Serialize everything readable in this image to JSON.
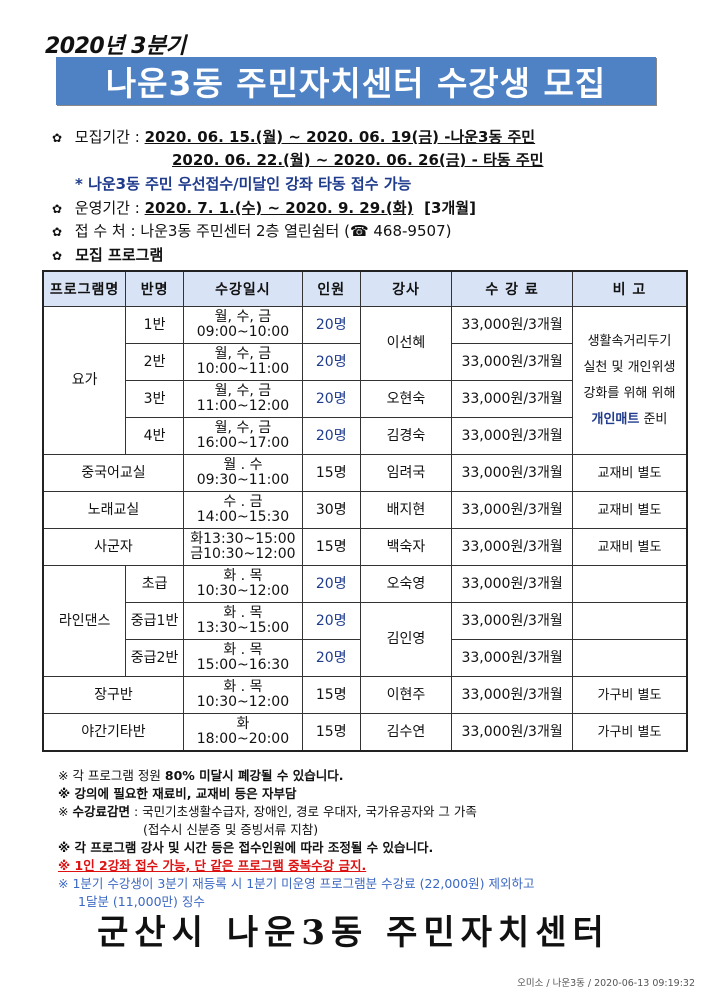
{
  "header": {
    "quarter": "2020년 3분기",
    "title": "나운3동 주민자치센터 수강생 모집"
  },
  "info": {
    "recruit_label": "모집기간 :",
    "recruit_period_1": "2020. 06. 15.(월) ~ 2020. 06. 19(금) -나운3동 주민",
    "recruit_period_2": "2020. 06. 22.(월) ~ 2020. 06. 26(금) - 타동 주민",
    "priority_note": "* 나운3동 주민 우선접수/미달인 강좌 타동 접수 가능",
    "operation_label": "운영기간 :",
    "operation_period": "2020. 7. 1.(수) ~ 2020. 9. 29.(화)",
    "operation_months": "[3개월]",
    "location_label": "접 수 처 :",
    "location": "나운3동 주민센터 2층 열린쉼터 (☎ 468-9507)",
    "program_label": "모집 프로그램"
  },
  "table": {
    "headers": [
      "프로그램명",
      "반명",
      "수강일시",
      "인원",
      "강사",
      "수 강 료",
      "비 고"
    ],
    "yoga_note": [
      "생활속거리두기",
      "실천 및 개인위생",
      "강화를 위해 위해"
    ],
    "yoga_note_highlight": "개인매트",
    "yoga_note_end": " 준비",
    "rows": [
      {
        "program": "요가",
        "class": "1반",
        "days": "월, 수, 금",
        "time": "09:00~10:00",
        "capacity": "20명",
        "instructor": "이선혜",
        "fee": "33,000원/3개월"
      },
      {
        "class": "2반",
        "days": "월, 수, 금",
        "time": "10:00~11:00",
        "capacity": "20명",
        "fee": "33,000원/3개월"
      },
      {
        "class": "3반",
        "days": "월, 수, 금",
        "time": "11:00~12:00",
        "capacity": "20명",
        "instructor": "오현숙",
        "fee": "33,000원/3개월"
      },
      {
        "class": "4반",
        "days": "월, 수, 금",
        "time": "16:00~17:00",
        "capacity": "20명",
        "instructor": "김경숙",
        "fee": "33,000원/3개월"
      },
      {
        "program": "중국어교실",
        "days": "월 . 수",
        "time": "09:30~11:00",
        "capacity": "15명",
        "instructor": "임려국",
        "fee": "33,000원/3개월",
        "note": "교재비 별도"
      },
      {
        "program": "노래교실",
        "days": "수 . 금",
        "time": "14:00~15:30",
        "capacity": "30명",
        "instructor": "배지현",
        "fee": "33,000원/3개월",
        "note": "교재비 별도"
      },
      {
        "program": "사군자",
        "days": "화13:30~15:00",
        "time": "금10:30~12:00",
        "capacity": "15명",
        "instructor": "백숙자",
        "fee": "33,000원/3개월",
        "note": "교재비 별도"
      },
      {
        "program": "라인댄스",
        "class": "초급",
        "days": "화 . 목",
        "time": "10:30~12:00",
        "capacity": "20명",
        "instructor": "오숙영",
        "fee": "33,000원/3개월",
        "note": ""
      },
      {
        "class": "중급1반",
        "days": "화 . 목",
        "time": "13:30~15:00",
        "capacity": "20명",
        "instructor": "김인영",
        "fee": "33,000원/3개월",
        "note": ""
      },
      {
        "class": "중급2반",
        "days": "화 . 목",
        "time": "15:00~16:30",
        "capacity": "20명",
        "fee": "33,000원/3개월",
        "note": ""
      },
      {
        "program": "장구반",
        "days": "화 . 목",
        "time": "10:30~12:00",
        "capacity": "15명",
        "instructor": "이현주",
        "fee": "33,000원/3개월",
        "note": "가구비 별도"
      },
      {
        "program": "야간기타반",
        "days": "화",
        "time": "18:00~20:00",
        "capacity": "15명",
        "instructor": "김수연",
        "fee": "33,000원/3개월",
        "note": "가구비 별도"
      }
    ]
  },
  "notes": {
    "n1_a": "※ 각 프로그램 정원 ",
    "n1_b": "80% 미달시 폐강될 수 있습니다.",
    "n2": "※ 강의에 필요한 재료비, 교재비 등은 자부담",
    "n3_a": "※ ",
    "n3_b": "수강료감면",
    "n3_c": " : 국민기초생활수급자, 장애인, 경로 우대자, 국가유공자와 그 가족",
    "n3_d": "(접수시 신분증 및 증빙서류 지참)",
    "n4": "※ 각 프로그램 강사 및 시간 등은 접수인원에 따라 조정될 수 있습니다.",
    "n5": "※ 1인 2강좌 접수 가능, 단 같은 프로그램 중복수강 금지.",
    "n6": "※ 1분기 수강생이 3분기 재등록 시 1분기 미운영 프로그램분 수강료 (22,000원) 제외하고",
    "n6_b": "1달분 (11,000만) 징수"
  },
  "footer": {
    "organization": "군산시 나운3동 주민자치센터",
    "stamp": "오미소 / 나운3동 / 2020-06-13 09:19:32"
  },
  "colors": {
    "banner": "#4f82c4",
    "header_cell": "#d8e3f5",
    "highlight_blue": "#1f3b8c",
    "warning_red": "#dd1111",
    "info_blue": "#3b68c2"
  },
  "icons": {
    "bullet": "flower-bullet-icon",
    "phone": "phone-icon"
  }
}
